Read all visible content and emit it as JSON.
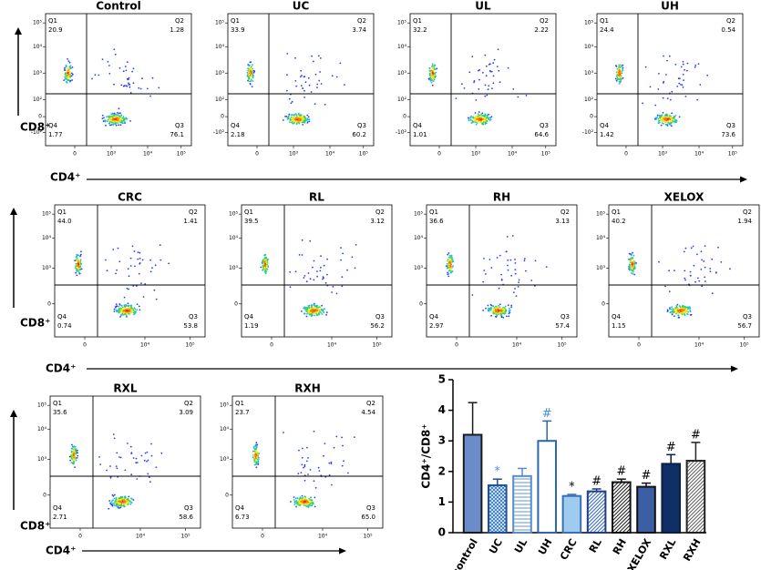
{
  "flow_rows": [
    {
      "x_label": "CD4⁺",
      "y_label": "CD8⁺",
      "yticks": [
        "10⁵",
        "10⁴",
        "10³",
        "10²",
        "0",
        "-10²"
      ],
      "xticks": [
        "0",
        "10³",
        "10⁴",
        "10⁵"
      ],
      "panels": [
        {
          "title": "Control",
          "values": [
            20.9,
            1.28,
            76.1,
            1.77
          ]
        },
        {
          "title": "UC",
          "values": [
            33.9,
            3.74,
            60.2,
            2.18
          ]
        },
        {
          "title": "UL",
          "values": [
            32.2,
            2.22,
            64.6,
            1.01
          ]
        },
        {
          "title": "UH",
          "values": [
            24.4,
            0.54,
            73.6,
            1.42
          ]
        }
      ]
    },
    {
      "x_label": "CD4⁺",
      "y_label": "CD8⁺",
      "yticks": [
        "10⁵",
        "10⁴",
        "10³",
        "0"
      ],
      "xticks": [
        "0",
        "10⁴",
        "10⁵"
      ],
      "panels": [
        {
          "title": "CRC",
          "values": [
            44.0,
            1.41,
            53.8,
            0.74
          ],
          "value_labels": [
            "44.0",
            "1.41",
            "53.8",
            "0.74"
          ]
        },
        {
          "title": "RL",
          "values": [
            39.5,
            3.12,
            56.2,
            1.19
          ]
        },
        {
          "title": "RH",
          "values": [
            36.6,
            3.13,
            57.4,
            2.97
          ]
        },
        {
          "title": "XELOX",
          "values": [
            40.2,
            1.94,
            56.7,
            1.15
          ]
        }
      ]
    },
    {
      "x_label": "CD4⁺",
      "y_label": "CD8⁺",
      "yticks": [
        "10⁵",
        "10⁴",
        "10³",
        "0"
      ],
      "xticks": [
        "0",
        "10⁴",
        "10⁵"
      ],
      "panels": [
        {
          "title": "RXL",
          "values": [
            35.6,
            3.09,
            58.6,
            2.71
          ]
        },
        {
          "title": "RXH",
          "values": [
            23.7,
            4.54,
            65.0,
            6.73
          ],
          "value_labels": [
            "23.7",
            "4.54",
            "65.0",
            "6.73"
          ]
        }
      ]
    }
  ],
  "quadrant_names": [
    "Q1",
    "Q2",
    "Q3",
    "Q4"
  ],
  "chart_data": {
    "type": "bar",
    "y_label": "CD4⁺/CD8⁺",
    "categories": [
      "control",
      "UC",
      "UL",
      "UH",
      "CRC",
      "RL",
      "RH",
      "XELOX",
      "RXL",
      "RXH"
    ],
    "values": [
      3.2,
      1.55,
      1.85,
      3.0,
      1.2,
      1.35,
      1.65,
      1.5,
      2.25,
      2.35
    ],
    "errors": [
      1.05,
      0.2,
      0.25,
      0.65,
      0.05,
      0.08,
      0.1,
      0.12,
      0.3,
      0.6
    ],
    "colors": [
      "#6a8cc8",
      "#3d7fd0",
      "#6f9fdc",
      "#ffffff",
      "#9fcbef",
      "#3d6cb5",
      "#222222",
      "#3a5fa5",
      "#102f66",
      "#666666"
    ],
    "edgecolors": [
      "#1a1a1a",
      "#1f4f9a",
      "#5b8bc9",
      "#2c65b5",
      "#3a6fb5",
      "#1f3f80",
      "#111111",
      "#111111",
      "#0a1f44",
      "#222222"
    ],
    "hatches": [
      "none",
      "cross",
      "horizontal",
      "none",
      "none",
      "diagonal",
      "diagonal",
      "none",
      "none",
      "diagonal"
    ],
    "markers": [
      null,
      "*",
      null,
      "#",
      "*",
      "#",
      "#",
      "#",
      "#",
      "#"
    ],
    "marker_colors": [
      null,
      "#4a90d9",
      null,
      "#4a90d9",
      "#000000",
      "#000000",
      "#000000",
      "#000000",
      "#000000",
      "#000000"
    ],
    "ylim": [
      0,
      5
    ],
    "yticks": [
      0,
      1,
      2,
      3,
      4,
      5
    ]
  }
}
